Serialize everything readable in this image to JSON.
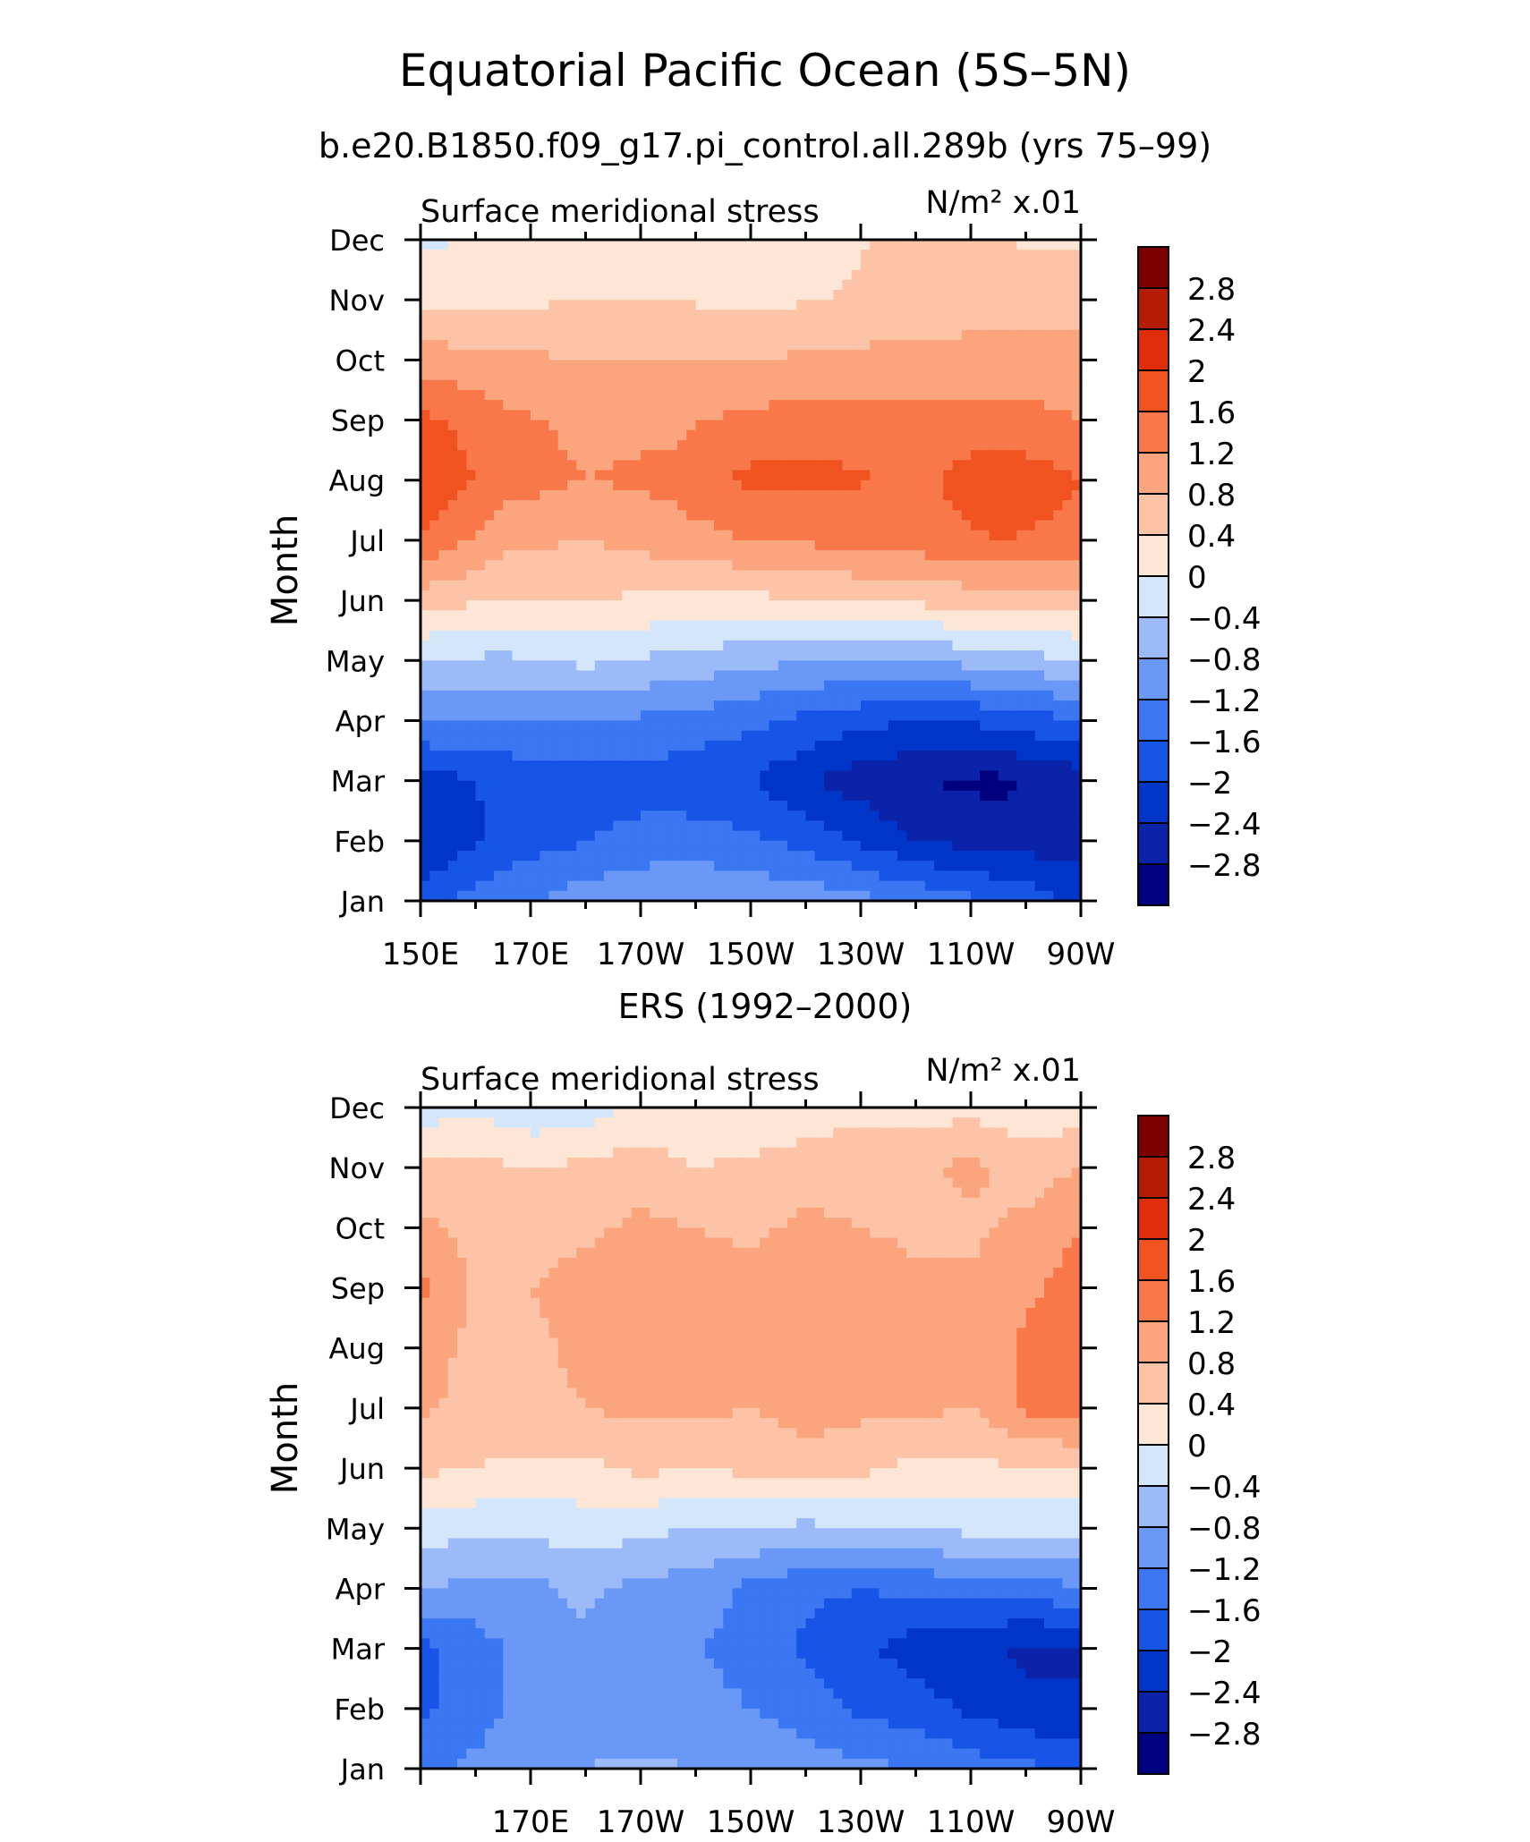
{
  "figure": {
    "title": "Equatorial Pacific Ocean (5S–5N)",
    "subtitle": "b.e20.B1850.f09_g17.pi_control.all.289b (yrs 75–99)"
  },
  "chart_data": [
    {
      "type": "heatmap",
      "panel_title": "",
      "variable_label": "Surface meridional stress",
      "units_label": "N/m² x.01",
      "ylabel": "Month",
      "months": [
        "Jan",
        "Feb",
        "Mar",
        "Apr",
        "May",
        "Jun",
        "Jul",
        "Aug",
        "Sep",
        "Oct",
        "Nov",
        "Dec"
      ],
      "x_ticks": [
        "150E",
        "170E",
        "170W",
        "150W",
        "130W",
        "110W",
        "90W"
      ],
      "x_lon": [
        150,
        170,
        190,
        210,
        230,
        250,
        270
      ],
      "lon_range": [
        150,
        270
      ],
      "x": [
        150,
        165,
        180,
        195,
        210,
        225,
        240,
        255,
        270
      ],
      "z": [
        [
          -1.8,
          -1.3,
          -1.0,
          -0.8,
          -0.9,
          -1.0,
          -1.3,
          -1.6,
          -2.1
        ],
        [
          -2.4,
          -1.9,
          -1.6,
          -1.4,
          -1.5,
          -1.9,
          -2.4,
          -2.6,
          -2.6
        ],
        [
          -2.2,
          -1.9,
          -1.8,
          -1.8,
          -2.0,
          -2.5,
          -2.8,
          -2.9,
          -2.6
        ],
        [
          -1.2,
          -1.2,
          -1.2,
          -1.3,
          -1.5,
          -1.8,
          -2.0,
          -1.9,
          -1.6
        ],
        [
          -0.4,
          -0.5,
          -0.3,
          -0.5,
          -0.7,
          -0.8,
          -0.8,
          -0.6,
          -0.4
        ],
        [
          0.6,
          0.4,
          0.4,
          0.3,
          0.3,
          0.4,
          0.5,
          0.6,
          0.6
        ],
        [
          1.6,
          0.9,
          0.8,
          1.0,
          1.2,
          1.3,
          1.4,
          1.6,
          1.5
        ],
        [
          2.0,
          1.4,
          1.2,
          1.3,
          1.7,
          1.7,
          1.5,
          1.9,
          1.6
        ],
        [
          1.7,
          1.3,
          1.1,
          1.1,
          1.3,
          1.4,
          1.3,
          1.4,
          1.2
        ],
        [
          1.0,
          0.9,
          0.8,
          0.8,
          0.8,
          0.9,
          0.9,
          0.9,
          0.9
        ],
        [
          0.3,
          0.3,
          0.4,
          0.4,
          0.3,
          0.4,
          0.6,
          0.7,
          0.7
        ],
        [
          -0.1,
          0.1,
          0.1,
          0.1,
          0.2,
          0.3,
          0.5,
          0.4,
          0.3
        ]
      ]
    },
    {
      "type": "heatmap",
      "panel_title": "ERS (1992–2000)",
      "variable_label": "Surface meridional stress",
      "units_label": "N/m² x.01",
      "ylabel": "Month",
      "months": [
        "Jan",
        "Feb",
        "Mar",
        "Apr",
        "May",
        "Jun",
        "Jul",
        "Aug",
        "Sep",
        "Oct",
        "Nov",
        "Dec"
      ],
      "x_ticks": [
        "170E",
        "170W",
        "150W",
        "130W",
        "110W",
        "90W"
      ],
      "x_lon": [
        170,
        190,
        210,
        230,
        250,
        270
      ],
      "lon_range": [
        150,
        270
      ],
      "x": [
        150,
        160,
        170,
        180,
        190,
        200,
        210,
        220,
        230,
        240,
        250,
        260,
        270
      ],
      "z": [
        [
          -1.3,
          -1.1,
          -0.9,
          -0.8,
          -0.7,
          -0.8,
          -0.9,
          -1.0,
          -1.1,
          -1.2,
          -1.4,
          -1.5,
          -1.7
        ],
        [
          -1.7,
          -1.4,
          -1.0,
          -0.9,
          -1.1,
          -1.1,
          -1.2,
          -1.4,
          -1.7,
          -1.8,
          -2.1,
          -2.3,
          -2.4
        ],
        [
          -1.7,
          -1.4,
          -1.0,
          -0.9,
          -1.2,
          -1.2,
          -1.3,
          -1.7,
          -1.9,
          -2.2,
          -2.3,
          -2.5,
          -2.4
        ],
        [
          -0.8,
          -0.9,
          -0.9,
          -0.7,
          -0.9,
          -1.0,
          -1.3,
          -1.5,
          -1.6,
          -1.5,
          -1.4,
          -1.4,
          -1.2
        ],
        [
          -0.2,
          -0.3,
          -0.3,
          -0.2,
          -0.3,
          -0.4,
          -0.4,
          -0.5,
          -0.4,
          -0.4,
          -0.3,
          -0.3,
          -0.3
        ],
        [
          0.5,
          0.4,
          0.3,
          0.3,
          0.5,
          0.4,
          0.5,
          0.6,
          0.5,
          0.3,
          0.3,
          0.4,
          0.4
        ],
        [
          0.9,
          0.6,
          0.7,
          0.8,
          0.9,
          0.9,
          0.8,
          1.0,
          0.9,
          0.9,
          0.8,
          1.3,
          1.4
        ],
        [
          1.0,
          0.7,
          0.7,
          0.9,
          0.9,
          0.9,
          1.0,
          1.0,
          1.0,
          1.0,
          0.9,
          1.3,
          1.5
        ],
        [
          1.3,
          0.7,
          0.8,
          1.0,
          1.0,
          1.0,
          1.0,
          1.0,
          1.1,
          0.9,
          0.9,
          1.1,
          1.4
        ],
        [
          0.9,
          0.7,
          0.6,
          0.7,
          0.9,
          0.8,
          0.7,
          0.9,
          0.8,
          0.7,
          0.7,
          0.9,
          1.2
        ],
        [
          0.5,
          0.5,
          0.4,
          0.5,
          0.6,
          0.4,
          0.5,
          0.6,
          0.6,
          0.7,
          0.9,
          0.6,
          0.8
        ],
        [
          -0.2,
          -0.1,
          -0.3,
          -0.2,
          0.1,
          0.0,
          0.0,
          0.2,
          0.3,
          0.2,
          0.3,
          0.1,
          0.2
        ]
      ]
    }
  ],
  "colorbar": {
    "labels": [
      "2.8",
      "2.4",
      "2",
      "1.6",
      "1.2",
      "0.8",
      "0.4",
      "0",
      "−0.4",
      "−0.8",
      "−1.2",
      "−1.6",
      "−2",
      "−2.4",
      "−2.8"
    ],
    "levels": [
      -2.8,
      -2.4,
      -2.0,
      -1.6,
      -1.2,
      -0.8,
      -0.4,
      0,
      0.4,
      0.8,
      1.2,
      1.6,
      2.0,
      2.4,
      2.8
    ],
    "colors": [
      "#00007f",
      "#0a23a8",
      "#0036c8",
      "#1755e6",
      "#3b77f2",
      "#6a98f6",
      "#9cbaf8",
      "#d4e6fc",
      "#fde6d6",
      "#fdc3a6",
      "#fba57f",
      "#f8784a",
      "#f0531f",
      "#de2d07",
      "#b51c05",
      "#7d0000"
    ]
  }
}
